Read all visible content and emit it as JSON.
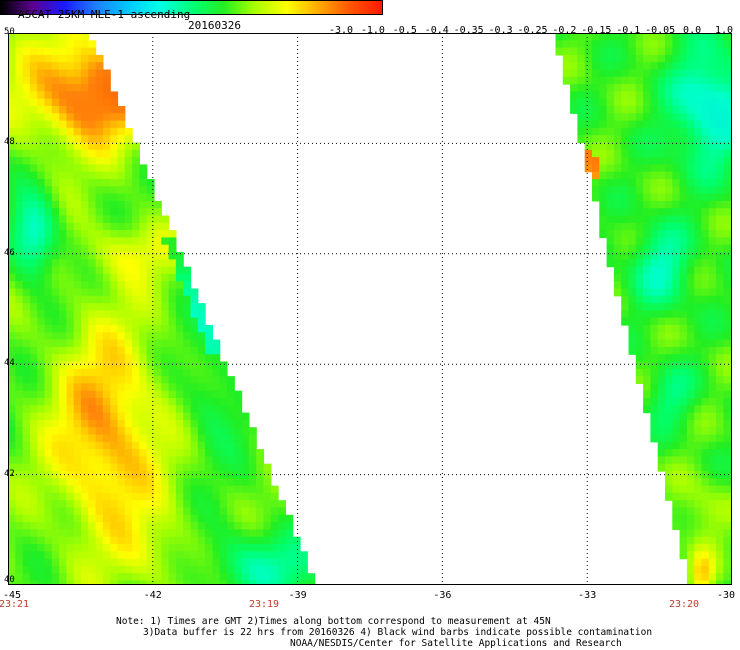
{
  "header": {
    "title": "ASCAT 25KM MLE-1 ascending",
    "date": "20160326"
  },
  "colorbar": {
    "labels": [
      "-3.0",
      "-1.0",
      "-0.5",
      "-0.4",
      "-0.35",
      "-0.3",
      "-0.25",
      "-0.2",
      "-0.15",
      "-0.1",
      "-0.05",
      "0.0",
      "1.0"
    ],
    "colors": [
      "#000000",
      "#5b0090",
      "#1a1aff",
      "#1f7fff",
      "#00c8ff",
      "#00ffe6",
      "#00ff7a",
      "#22ee22",
      "#aaff00",
      "#ffff00",
      "#ffaa00",
      "#ff5500",
      "#ff1a00"
    ]
  },
  "map": {
    "lat_labels": [
      "50",
      "48",
      "46",
      "44",
      "42",
      "40"
    ],
    "lon_labels": [
      "-45",
      "-42",
      "-39",
      "-36",
      "-33",
      "-30"
    ],
    "lat_range": [
      40,
      50
    ],
    "lon_range": [
      -45,
      -30
    ],
    "time_labels": [
      "23:21",
      "23:19",
      "23:20"
    ]
  },
  "notes": [
    "Note: 1) Times are GMT 2)Times along bottom correspond to measurement at 45N",
    "3)Data buffer is 22 hrs from 20160326 4) Black wind barbs indicate possible contamination",
    "NOAA/NESDIS/Center for Satellite Applications and Research"
  ]
}
